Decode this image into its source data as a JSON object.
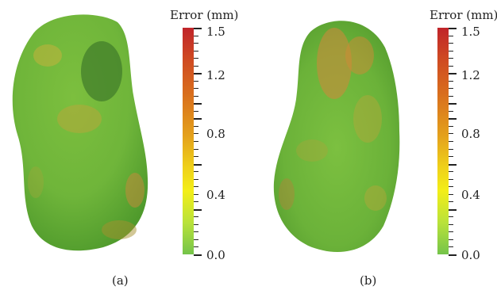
{
  "panels": [
    {
      "caption": "(a)",
      "colorbar_title": "Error (mm)"
    },
    {
      "caption": "(b)",
      "colorbar_title": "Error (mm)"
    }
  ],
  "colorbar": {
    "ticks": [
      "1.5",
      "1.2",
      "0.8",
      "0.4",
      "0.0"
    ],
    "colors": [
      "#c0242a",
      "#d9701d",
      "#e4a21c",
      "#f3ee18",
      "#74c44a"
    ]
  }
}
